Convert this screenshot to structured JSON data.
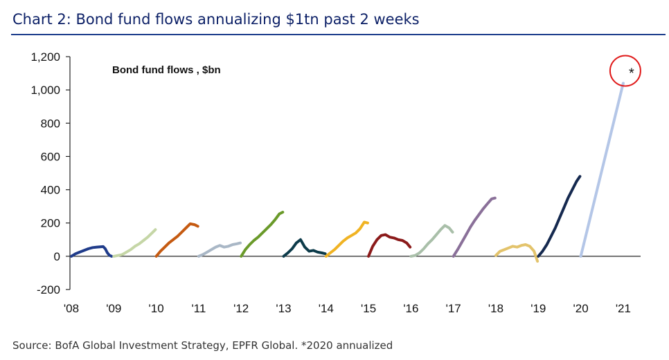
{
  "title": "Chart 2: Bond fund flows annualizing $1tn past 2 weeks",
  "source": "Source: BofA Global Investment Strategy, EPFR Global. *2020 annualized",
  "chart_data": {
    "type": "line",
    "title": "Chart 2: Bond fund flows annualizing $1tn past 2 weeks",
    "series_label": "Bond fund flows , $bn",
    "xlabel": "",
    "ylabel": "",
    "ylim": [
      -200,
      1200
    ],
    "xlim": [
      2008,
      2021.5
    ],
    "yticks": [
      -200,
      0,
      200,
      400,
      600,
      800,
      1000,
      1200
    ],
    "ytick_labels": [
      "-200",
      "0",
      "200",
      "400",
      "600",
      "800",
      "1,000",
      "1,200"
    ],
    "xticks": [
      2008,
      2009,
      2010,
      2011,
      2012,
      2013,
      2014,
      2015,
      2016,
      2017,
      2018,
      2019,
      2020,
      2021
    ],
    "xtick_labels": [
      "'08",
      "'09",
      "'10",
      "'11",
      "'12",
      "'13",
      "'14",
      "'15",
      "'16",
      "'17",
      "'18",
      "'19",
      "'20",
      "'21"
    ],
    "grid": false,
    "annotation": {
      "text": "*",
      "x": 2021.0,
      "y": 1040,
      "style": "red-circle"
    },
    "series": [
      {
        "year": "2008",
        "color": "#1f3b8a",
        "x": [
          2008.0,
          2008.1,
          2008.2,
          2008.3,
          2008.4,
          2008.5,
          2008.6,
          2008.7,
          2008.75,
          2008.8,
          2008.85,
          2008.9,
          2008.95
        ],
        "y": [
          0,
          15,
          25,
          35,
          45,
          52,
          55,
          57,
          58,
          45,
          20,
          5,
          0
        ]
      },
      {
        "year": "2009",
        "color": "#c5d6a6",
        "x": [
          2009.0,
          2009.1,
          2009.2,
          2009.3,
          2009.4,
          2009.5,
          2009.6,
          2009.7,
          2009.8,
          2009.9,
          2009.98
        ],
        "y": [
          0,
          5,
          10,
          25,
          40,
          60,
          75,
          95,
          115,
          140,
          160
        ]
      },
      {
        "year": "2010",
        "color": "#c55a11",
        "x": [
          2010.0,
          2010.1,
          2010.2,
          2010.3,
          2010.4,
          2010.5,
          2010.6,
          2010.7,
          2010.8,
          2010.9,
          2010.98
        ],
        "y": [
          0,
          30,
          55,
          80,
          100,
          120,
          145,
          170,
          195,
          190,
          180
        ]
      },
      {
        "year": "2011",
        "color": "#a9b7c6",
        "x": [
          2011.0,
          2011.1,
          2011.2,
          2011.3,
          2011.4,
          2011.5,
          2011.6,
          2011.7,
          2011.8,
          2011.9,
          2011.98
        ],
        "y": [
          0,
          10,
          25,
          40,
          55,
          65,
          55,
          60,
          70,
          75,
          80
        ]
      },
      {
        "year": "2012",
        "color": "#6a9a2a",
        "x": [
          2012.0,
          2012.1,
          2012.2,
          2012.3,
          2012.4,
          2012.5,
          2012.6,
          2012.7,
          2012.8,
          2012.9,
          2012.98
        ],
        "y": [
          0,
          40,
          70,
          95,
          115,
          140,
          165,
          190,
          220,
          255,
          265
        ]
      },
      {
        "year": "2013",
        "color": "#0d3b4a",
        "x": [
          2013.0,
          2013.1,
          2013.2,
          2013.3,
          2013.4,
          2013.5,
          2013.6,
          2013.7,
          2013.8,
          2013.9,
          2013.98
        ],
        "y": [
          0,
          20,
          45,
          80,
          100,
          55,
          30,
          35,
          25,
          20,
          15
        ]
      },
      {
        "year": "2014",
        "color": "#f0b323",
        "x": [
          2014.0,
          2014.1,
          2014.2,
          2014.3,
          2014.4,
          2014.5,
          2014.6,
          2014.7,
          2014.8,
          2014.9,
          2014.98
        ],
        "y": [
          0,
          20,
          40,
          65,
          90,
          110,
          125,
          140,
          165,
          205,
          200
        ]
      },
      {
        "year": "2015",
        "color": "#8b1a1a",
        "x": [
          2015.0,
          2015.1,
          2015.2,
          2015.3,
          2015.4,
          2015.5,
          2015.6,
          2015.7,
          2015.8,
          2015.9,
          2015.98
        ],
        "y": [
          0,
          60,
          100,
          125,
          130,
          115,
          110,
          100,
          95,
          80,
          55
        ]
      },
      {
        "year": "2016",
        "color": "#a9bfa9",
        "x": [
          2016.0,
          2016.1,
          2016.2,
          2016.3,
          2016.4,
          2016.5,
          2016.6,
          2016.7,
          2016.8,
          2016.9,
          2016.98
        ],
        "y": [
          0,
          5,
          20,
          45,
          75,
          100,
          130,
          160,
          185,
          170,
          145
        ]
      },
      {
        "year": "2017",
        "color": "#8a7099",
        "x": [
          2017.0,
          2017.1,
          2017.2,
          2017.3,
          2017.4,
          2017.5,
          2017.6,
          2017.7,
          2017.8,
          2017.9,
          2017.98
        ],
        "y": [
          0,
          40,
          85,
          130,
          175,
          215,
          250,
          285,
          315,
          345,
          350
        ]
      },
      {
        "year": "2018",
        "color": "#e3c36b",
        "x": [
          2018.0,
          2018.1,
          2018.2,
          2018.3,
          2018.4,
          2018.5,
          2018.6,
          2018.7,
          2018.8,
          2018.9,
          2018.98
        ],
        "y": [
          5,
          30,
          40,
          50,
          60,
          55,
          65,
          70,
          60,
          30,
          -30
        ]
      },
      {
        "year": "2019",
        "color": "#15294f",
        "x": [
          2019.0,
          2019.1,
          2019.2,
          2019.3,
          2019.4,
          2019.5,
          2019.6,
          2019.7,
          2019.8,
          2019.9,
          2019.98
        ],
        "y": [
          0,
          30,
          70,
          120,
          170,
          230,
          290,
          350,
          400,
          450,
          480
        ]
      },
      {
        "year": "2020",
        "color": "#b4c6e7",
        "x": [
          2020.0,
          2021.0
        ],
        "y": [
          0,
          1040
        ]
      }
    ]
  }
}
